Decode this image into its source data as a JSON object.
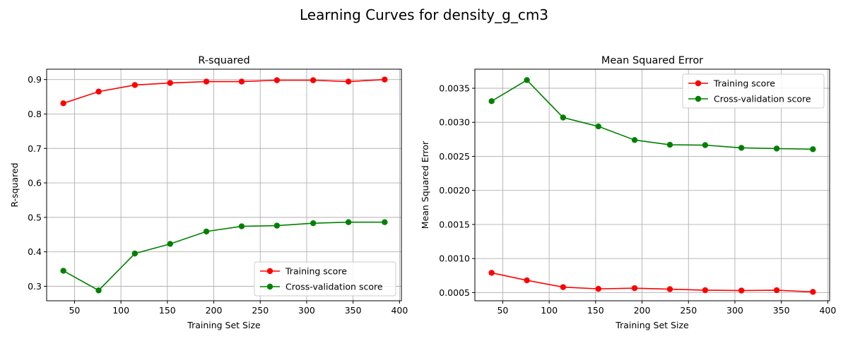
{
  "figure": {
    "suptitle": "Learning Curves for density_g_cm3"
  },
  "chart_data": [
    {
      "type": "line",
      "title": "R-squared",
      "xlabel": "Training Set Size",
      "ylabel": "R-squared",
      "xlim": [
        20,
        402
      ],
      "ylim": [
        0.258,
        0.93
      ],
      "xticks": [
        50,
        100,
        150,
        200,
        250,
        300,
        350,
        400
      ],
      "xtick_labels": [
        "50",
        "100",
        "150",
        "200",
        "250",
        "300",
        "350",
        "400"
      ],
      "yticks": [
        0.3,
        0.4,
        0.5,
        0.6,
        0.7,
        0.8,
        0.9
      ],
      "ytick_labels": [
        "0.3",
        "0.4",
        "0.5",
        "0.6",
        "0.7",
        "0.8",
        "0.9"
      ],
      "grid": true,
      "legend_position": "lower-right",
      "x": [
        38,
        76,
        115,
        153,
        192,
        230,
        268,
        307,
        345,
        384
      ],
      "series": [
        {
          "name": "Training score",
          "color": "#ff0000",
          "marker": "circle",
          "values": [
            0.831,
            0.865,
            0.884,
            0.89,
            0.894,
            0.894,
            0.898,
            0.898,
            0.894,
            0.9
          ]
        },
        {
          "name": "Cross-validation score",
          "color": "#008000",
          "marker": "circle",
          "values": [
            0.345,
            0.288,
            0.395,
            0.423,
            0.459,
            0.474,
            0.476,
            0.483,
            0.486,
            0.486
          ]
        }
      ]
    },
    {
      "type": "line",
      "title": "Mean Squared Error",
      "xlabel": "Training Set Size",
      "ylabel": "Mean Squared Error",
      "xlim": [
        20,
        402
      ],
      "ylim": [
        0.00038,
        0.00378
      ],
      "xticks": [
        50,
        100,
        150,
        200,
        250,
        300,
        350,
        400
      ],
      "xtick_labels": [
        "50",
        "100",
        "150",
        "200",
        "250",
        "300",
        "350",
        "400"
      ],
      "yticks": [
        0.0005,
        0.001,
        0.0015,
        0.002,
        0.0025,
        0.003,
        0.0035
      ],
      "ytick_labels": [
        "0.0005",
        "0.0010",
        "0.0015",
        "0.0020",
        "0.0025",
        "0.0030",
        "0.0035"
      ],
      "grid": true,
      "legend_position": "upper-right",
      "x": [
        38,
        76,
        115,
        153,
        192,
        230,
        268,
        307,
        345,
        384
      ],
      "series": [
        {
          "name": "Training score",
          "color": "#ff0000",
          "marker": "circle",
          "values": [
            0.00079,
            0.00068,
            0.00058,
            0.000555,
            0.000565,
            0.00055,
            0.000535,
            0.00053,
            0.000535,
            0.00051
          ]
        },
        {
          "name": "Cross-validation score",
          "color": "#008000",
          "marker": "circle",
          "values": [
            0.00331,
            0.00362,
            0.00307,
            0.00294,
            0.00274,
            0.00267,
            0.002665,
            0.002625,
            0.002615,
            0.002605
          ]
        }
      ]
    }
  ]
}
